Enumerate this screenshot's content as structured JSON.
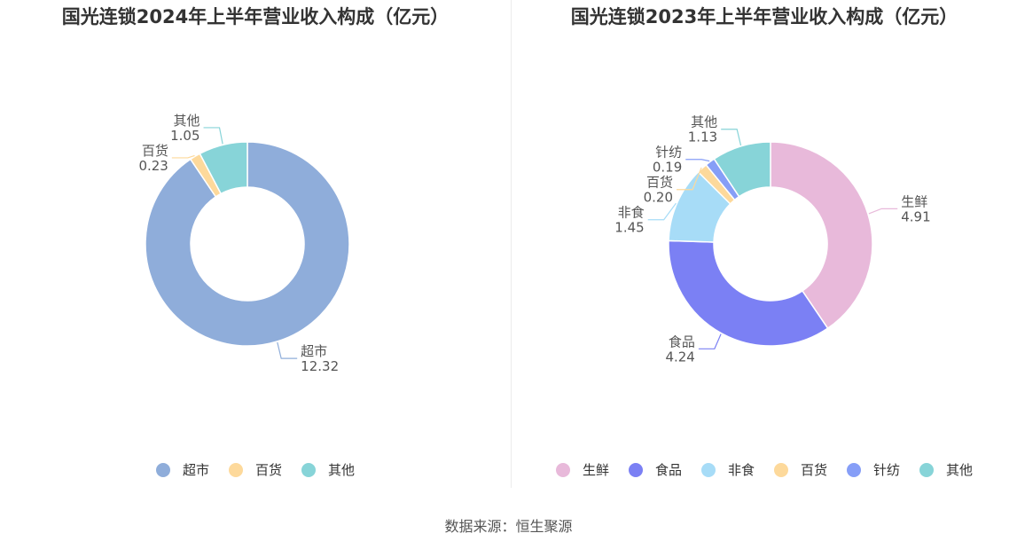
{
  "source": "数据来源：恒生聚源",
  "chart_data": [
    {
      "type": "pie",
      "variant": "donut",
      "title": "国光连锁2024年上半年营业收入构成（亿元）",
      "unit": "亿元",
      "legend_position": "bottom",
      "slices": [
        {
          "name": "超市",
          "value": 12.32,
          "label": "12.32",
          "color": "#8fadda"
        },
        {
          "name": "百货",
          "value": 0.23,
          "label": "0.23",
          "color": "#fdd99b"
        },
        {
          "name": "其他",
          "value": 1.05,
          "label": "1.05",
          "color": "#87d4d8"
        }
      ]
    },
    {
      "type": "pie",
      "variant": "donut",
      "title": "国光连锁2023年上半年营业收入构成（亿元）",
      "unit": "亿元",
      "legend_position": "bottom",
      "slices": [
        {
          "name": "生鲜",
          "value": 4.91,
          "label": "4.91",
          "color": "#e8b9da"
        },
        {
          "name": "食品",
          "value": 4.24,
          "label": "4.24",
          "color": "#7b80f4"
        },
        {
          "name": "非食",
          "value": 1.45,
          "label": "1.45",
          "color": "#a7dcf7"
        },
        {
          "name": "百货",
          "value": 0.2,
          "label": "0.20",
          "color": "#fdd99b"
        },
        {
          "name": "针纺",
          "value": 0.19,
          "label": "0.19",
          "color": "#869ef7"
        },
        {
          "name": "其他",
          "value": 1.13,
          "label": "1.13",
          "color": "#87d4d8"
        }
      ]
    }
  ]
}
